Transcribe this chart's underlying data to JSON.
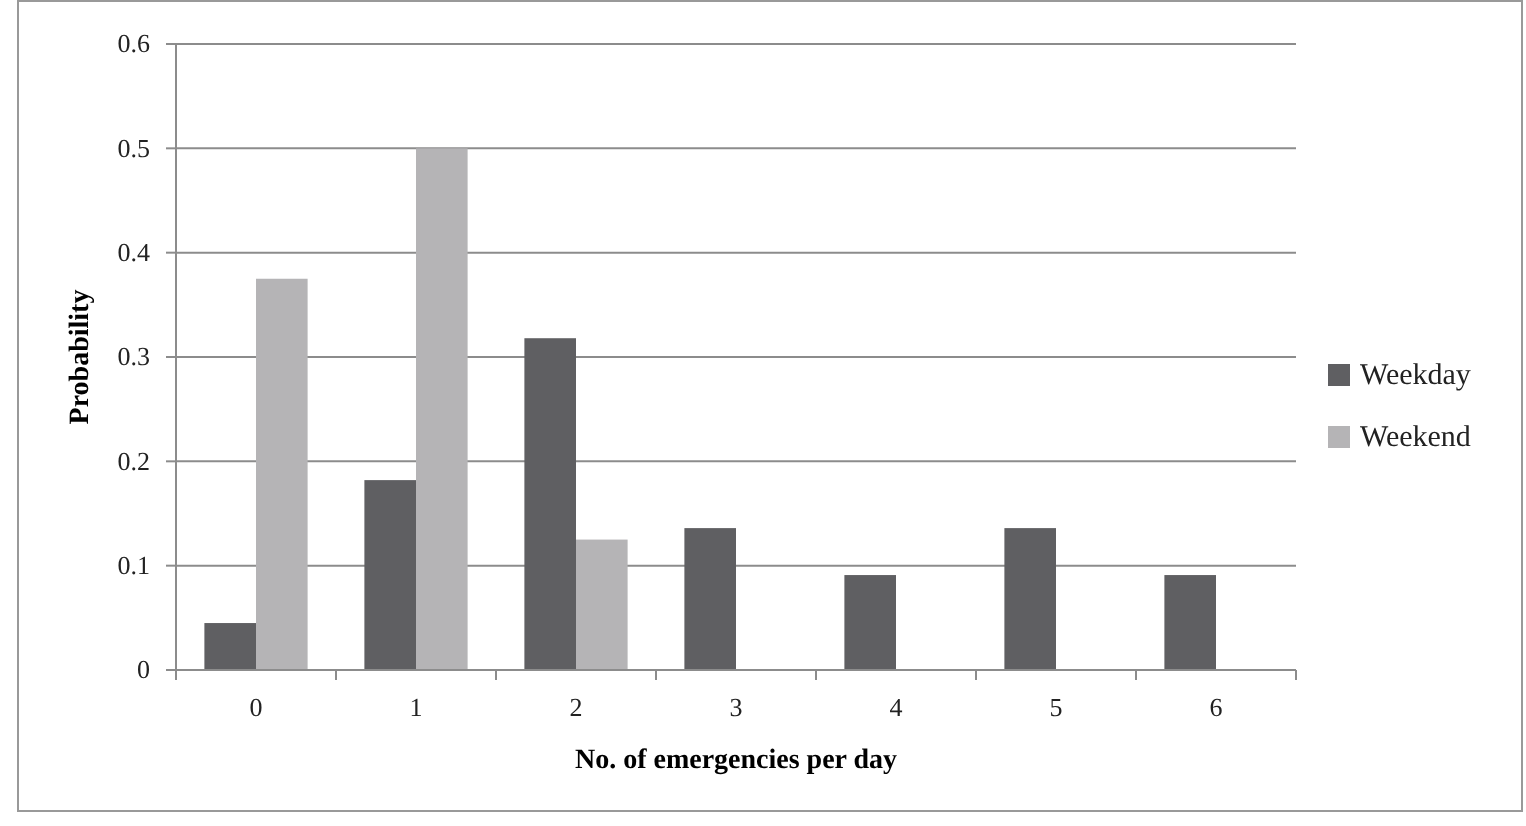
{
  "chart_data": {
    "type": "bar",
    "xlabel": "No. of emergencies per day",
    "ylabel": "Probability",
    "categories": [
      "0",
      "1",
      "2",
      "3",
      "4",
      "5",
      "6"
    ],
    "series": [
      {
        "name": "Weekday",
        "color": "#5f5f62",
        "values": [
          0.045,
          0.182,
          0.318,
          0.136,
          0.091,
          0.136,
          0.091
        ]
      },
      {
        "name": "Weekend",
        "color": "#b5b4b6",
        "values": [
          0.375,
          0.5,
          0.125,
          0,
          0,
          0,
          0
        ]
      }
    ],
    "ylim": [
      0,
      0.6
    ],
    "yticks": [
      0,
      0.1,
      0.2,
      0.3,
      0.4,
      0.5,
      0.6
    ],
    "grid": "y",
    "legend": "right"
  }
}
